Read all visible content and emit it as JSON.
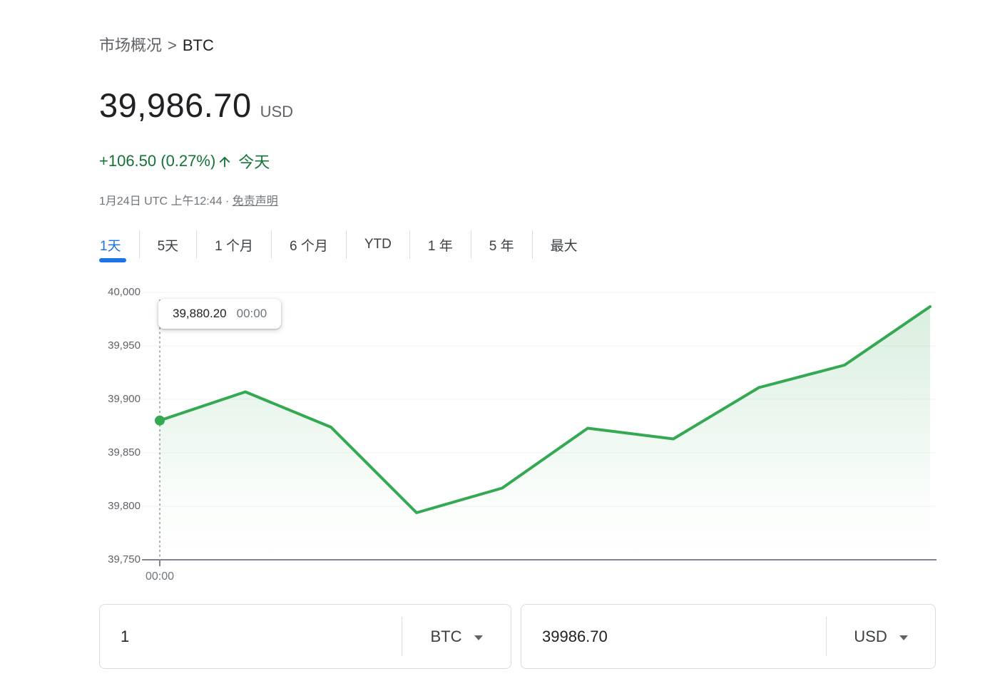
{
  "breadcrumb": {
    "market": "市场概况",
    "separator": ">",
    "symbol": "BTC"
  },
  "quote": {
    "price": "39,986.70",
    "currency": "USD",
    "change_text": "+106.50 (0.27%)",
    "change_direction": "up",
    "change_period": "今天",
    "timestamp": "1月24日 UTC 上午12:44",
    "dot_separator": "·",
    "disclaimer_label": "免责声明",
    "positive_color": "#137333"
  },
  "tabs": [
    {
      "label": "1天",
      "active": true
    },
    {
      "label": "5天",
      "active": false
    },
    {
      "label": "1 个月",
      "active": false
    },
    {
      "label": "6 个月",
      "active": false
    },
    {
      "label": "YTD",
      "active": false
    },
    {
      "label": "1 年",
      "active": false
    },
    {
      "label": "5 年",
      "active": false
    },
    {
      "label": "最大",
      "active": false
    }
  ],
  "chart_data": {
    "type": "area",
    "series_name": "BTC/USD",
    "values": [
      39880.2,
      39907,
      39874,
      39794,
      39817,
      39873,
      39863,
      39911,
      39932,
      39986.7
    ],
    "first_point_time": "00:00",
    "x_axis_tick_label": "00:00",
    "y_ticks": [
      40000,
      39950,
      39900,
      39850,
      39800,
      39750
    ],
    "y_tick_labels": [
      "40,000",
      "39,950",
      "39,900",
      "39,850",
      "39,800",
      "39,750"
    ],
    "ylim": [
      39750,
      40000
    ],
    "grid": true,
    "legend": "none",
    "line_color": "#34a853",
    "axis_color": "#80868b",
    "grid_color": "#f1f3f4",
    "tooltip": {
      "value": "39,880.20",
      "time": "00:00"
    }
  },
  "converter": {
    "amount_from": "1",
    "unit_from": "BTC",
    "amount_to": "39986.70",
    "unit_to": "USD"
  },
  "colors": {
    "accent_blue": "#1a73e8",
    "positive_green": "#137333",
    "chart_green": "#34a853"
  }
}
